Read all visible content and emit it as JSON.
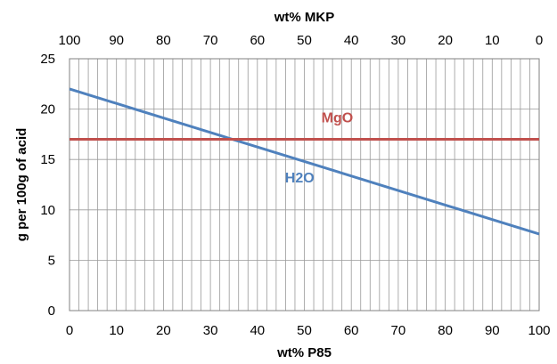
{
  "chart_data": {
    "type": "line",
    "xlabel": "wt% P85",
    "x2label": "wt% MKP",
    "ylabel": "g per 100g of acid",
    "xlim": [
      0,
      100
    ],
    "ylim": [
      0,
      25
    ],
    "x_ticks": [
      "0",
      "10",
      "20",
      "30",
      "40",
      "50",
      "60",
      "70",
      "80",
      "90",
      "100"
    ],
    "x2_ticks": [
      "100",
      "90",
      "80",
      "70",
      "60",
      "50",
      "40",
      "30",
      "20",
      "10",
      "0"
    ],
    "y_ticks": [
      "0",
      "5",
      "10",
      "15",
      "20",
      "25"
    ],
    "minor_x_step": 2,
    "grid": true,
    "series": [
      {
        "name": "H2O",
        "color": "#4f81bd",
        "x": [
          0,
          100
        ],
        "y": [
          22.0,
          7.6
        ]
      },
      {
        "name": "MgO",
        "color": "#c0504d",
        "x": [
          0,
          100
        ],
        "y": [
          17.0,
          17.0
        ]
      }
    ],
    "annotations": [
      {
        "text": "MgO",
        "series": "MgO",
        "x": 57,
        "y": 18.7
      },
      {
        "text": "H2O",
        "series": "H2O",
        "x": 49,
        "y": 12.7
      }
    ]
  }
}
